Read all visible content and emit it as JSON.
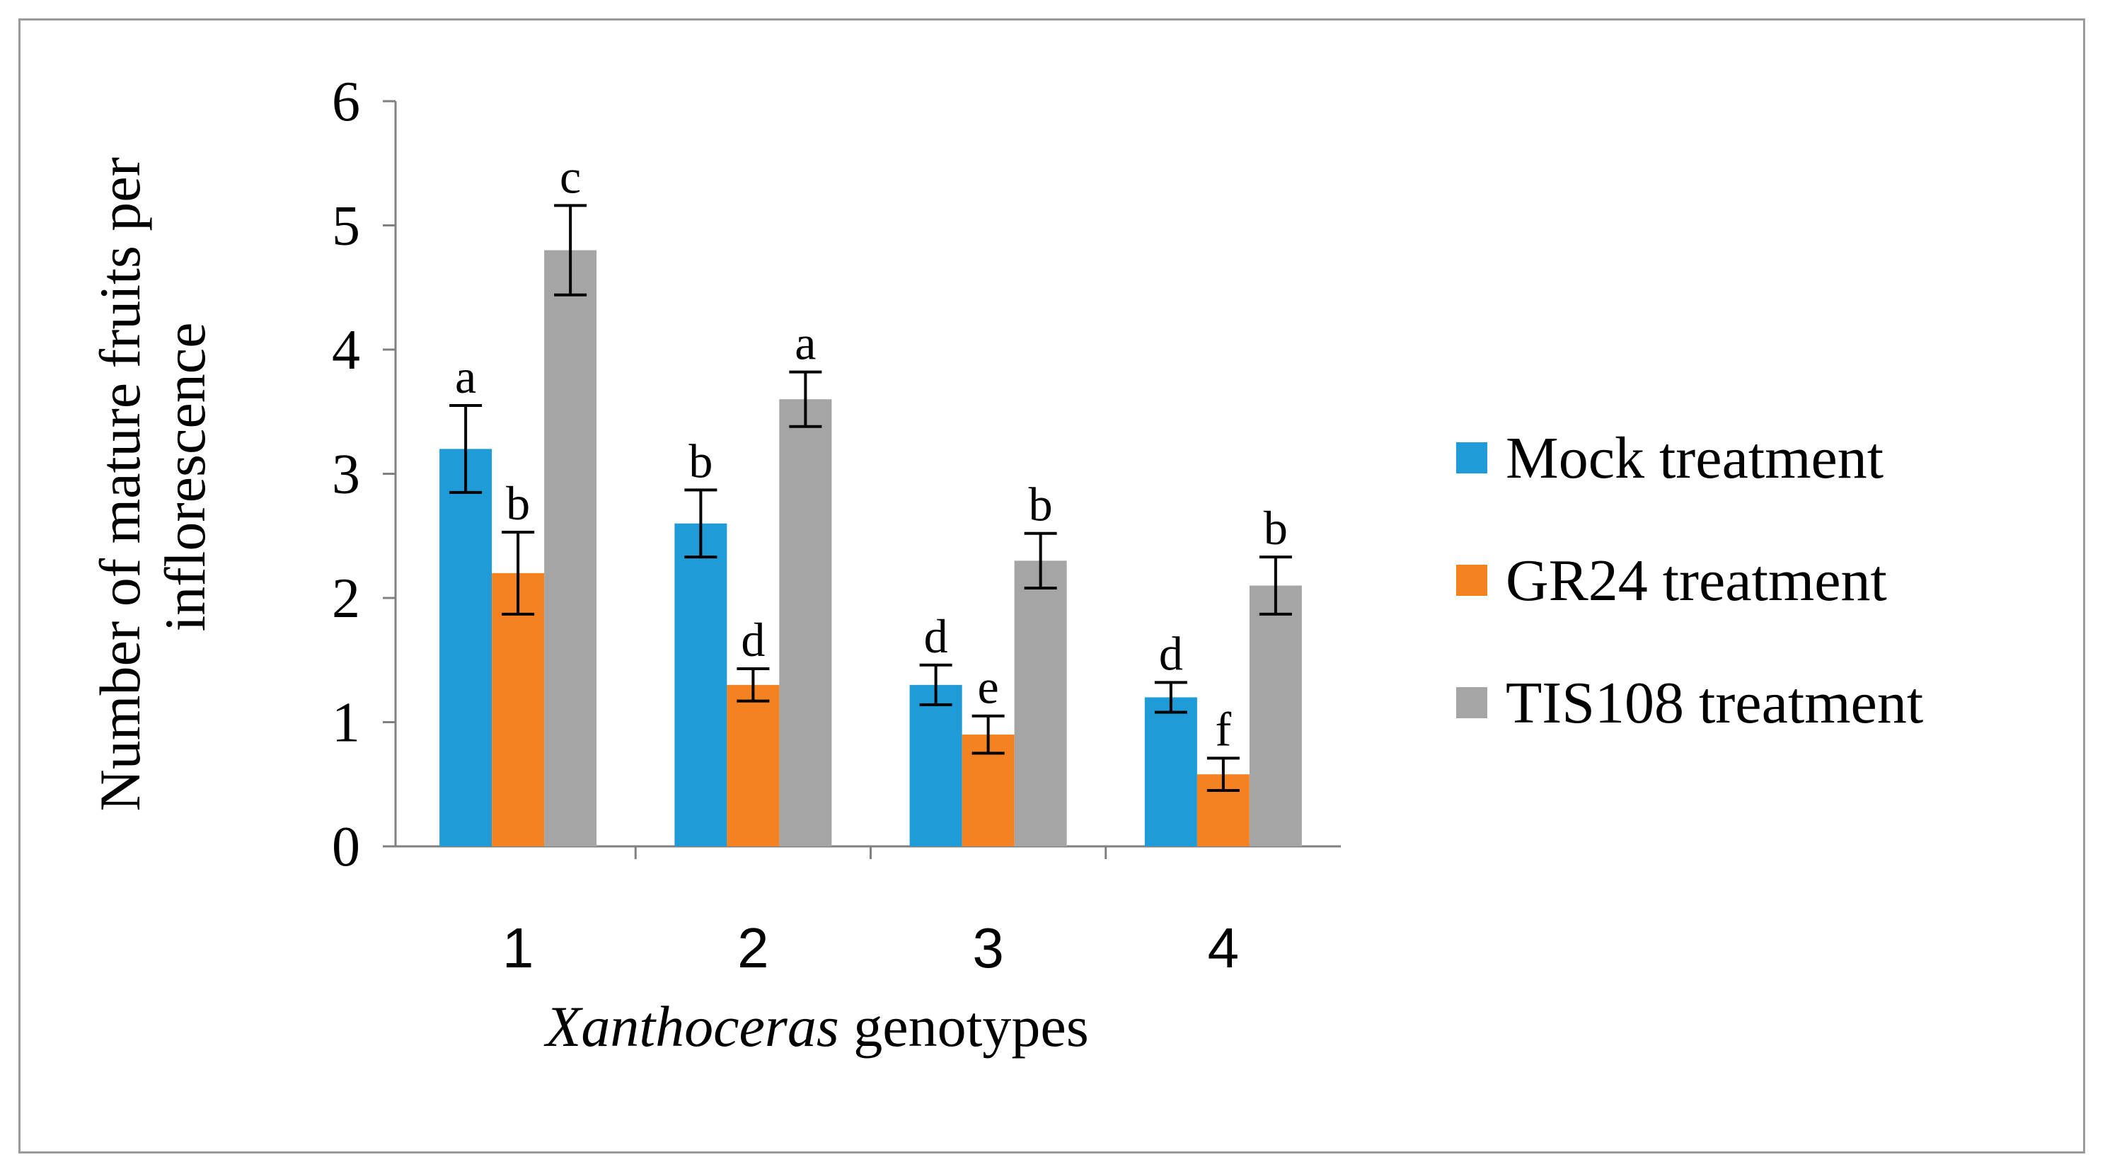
{
  "chart_data": {
    "type": "bar",
    "categories": [
      "1",
      "2",
      "3",
      "4"
    ],
    "series": [
      {
        "name": "Mock treatment",
        "color": "#1f9bd7",
        "values": [
          3.2,
          2.6,
          1.3,
          1.2
        ],
        "errors": [
          0.35,
          0.27,
          0.16,
          0.12
        ],
        "letters": [
          "a",
          "b",
          "d",
          "d"
        ]
      },
      {
        "name": "GR24 treatment",
        "color": "#f58220",
        "values": [
          2.2,
          1.3,
          0.9,
          0.58
        ],
        "errors": [
          0.33,
          0.13,
          0.15,
          0.13
        ],
        "letters": [
          "b",
          "d",
          "e",
          "f"
        ]
      },
      {
        "name": "TIS108 treatment",
        "color": "#a5a5a5",
        "values": [
          4.8,
          3.6,
          2.3,
          2.1
        ],
        "errors": [
          0.36,
          0.22,
          0.22,
          0.23
        ],
        "letters": [
          "c",
          "a",
          "b",
          "b"
        ]
      }
    ],
    "yticks": [
      "0",
      "1",
      "2",
      "3",
      "4",
      "5",
      "6"
    ],
    "ylim": [
      0,
      6
    ],
    "ylabel_line1": "Number of mature fruits per",
    "ylabel_line2": "inflorescence",
    "xlabel_italic": "Xanthoceras",
    "xlabel_rest": " genotypes",
    "legend_position": "right",
    "grid": false
  }
}
